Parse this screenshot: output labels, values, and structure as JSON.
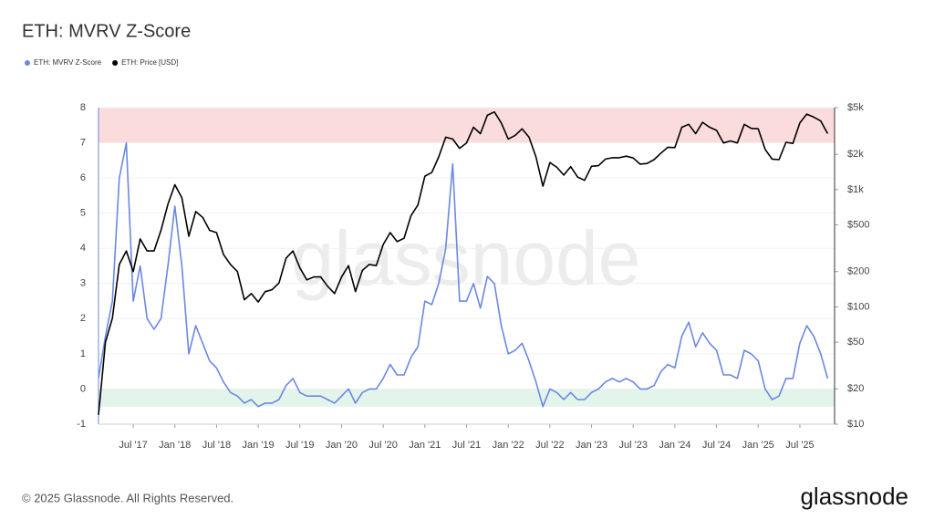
{
  "chart_data": {
    "type": "line",
    "title": "ETH: MVRV Z-Score",
    "copyright": "© 2025 Glassnode. All Rights Reserved.",
    "logo": "glassnode",
    "watermark": "glassnode",
    "legend": "top-left",
    "grid": true,
    "x": [
      "2017-02",
      "2017-03",
      "2017-04",
      "2017-05",
      "2017-06",
      "2017-07",
      "2017-08",
      "2017-09",
      "2017-10",
      "2017-11",
      "2017-12",
      "2018-01",
      "2018-02",
      "2018-03",
      "2018-04",
      "2018-05",
      "2018-06",
      "2018-07",
      "2018-08",
      "2018-09",
      "2018-10",
      "2018-11",
      "2018-12",
      "2019-01",
      "2019-02",
      "2019-03",
      "2019-04",
      "2019-05",
      "2019-06",
      "2019-07",
      "2019-08",
      "2019-09",
      "2019-10",
      "2019-11",
      "2019-12",
      "2020-01",
      "2020-02",
      "2020-03",
      "2020-04",
      "2020-05",
      "2020-06",
      "2020-07",
      "2020-08",
      "2020-09",
      "2020-10",
      "2020-11",
      "2020-12",
      "2021-01",
      "2021-02",
      "2021-03",
      "2021-04",
      "2021-05",
      "2021-06",
      "2021-07",
      "2021-08",
      "2021-09",
      "2021-10",
      "2021-11",
      "2021-12",
      "2022-01",
      "2022-02",
      "2022-03",
      "2022-04",
      "2022-05",
      "2022-06",
      "2022-07",
      "2022-08",
      "2022-09",
      "2022-10",
      "2022-11",
      "2022-12",
      "2023-01",
      "2023-02",
      "2023-03",
      "2023-04",
      "2023-05",
      "2023-06",
      "2023-07",
      "2023-08",
      "2023-09",
      "2023-10",
      "2023-11",
      "2023-12",
      "2024-01",
      "2024-02",
      "2024-03",
      "2024-04",
      "2024-05",
      "2024-06",
      "2024-07",
      "2024-08",
      "2024-09",
      "2024-10",
      "2024-11",
      "2024-12",
      "2025-01",
      "2025-02",
      "2025-03",
      "2025-04",
      "2025-05",
      "2025-06",
      "2025-07",
      "2025-08",
      "2025-09",
      "2025-10",
      "2025-11"
    ],
    "xlim": [
      "2017-02",
      "2025-12"
    ],
    "xticks": [
      {
        "value": "2017-07",
        "label": "Jul '17"
      },
      {
        "value": "2018-01",
        "label": "Jan '18"
      },
      {
        "value": "2018-07",
        "label": "Jul '18"
      },
      {
        "value": "2019-01",
        "label": "Jan '19"
      },
      {
        "value": "2019-07",
        "label": "Jul '19"
      },
      {
        "value": "2020-01",
        "label": "Jan '20"
      },
      {
        "value": "2020-07",
        "label": "Jul '20"
      },
      {
        "value": "2021-01",
        "label": "Jan '21"
      },
      {
        "value": "2021-07",
        "label": "Jul '21"
      },
      {
        "value": "2022-01",
        "label": "Jan '22"
      },
      {
        "value": "2022-07",
        "label": "Jul '22"
      },
      {
        "value": "2023-01",
        "label": "Jan '23"
      },
      {
        "value": "2023-07",
        "label": "Jul '23"
      },
      {
        "value": "2024-01",
        "label": "Jan '24"
      },
      {
        "value": "2024-07",
        "label": "Jul '24"
      },
      {
        "value": "2025-01",
        "label": "Jan '25"
      },
      {
        "value": "2025-07",
        "label": "Jul '25"
      }
    ],
    "ylim": [
      -1,
      8
    ],
    "yticks": [
      -1,
      0,
      1,
      2,
      3,
      4,
      5,
      6,
      7,
      8
    ],
    "y2lim": [
      10,
      5000
    ],
    "y2scale": "log",
    "y2ticks": [
      {
        "value": 10,
        "label": "$10"
      },
      {
        "value": 20,
        "label": "$20"
      },
      {
        "value": 50,
        "label": "$50"
      },
      {
        "value": 100,
        "label": "$100"
      },
      {
        "value": 200,
        "label": "$200"
      },
      {
        "value": 500,
        "label": "$500"
      },
      {
        "value": 1000,
        "label": "$1k"
      },
      {
        "value": 2000,
        "label": "$2k"
      },
      {
        "value": 5000,
        "label": "$5k"
      }
    ],
    "bands": [
      {
        "from": 7,
        "to": 8,
        "color": "#fbdcdc"
      },
      {
        "from": -0.5,
        "to": 0,
        "color": "#e3f4ea"
      }
    ],
    "series": [
      {
        "name": "ETH: MVRV Z-Score",
        "color": "#6b88e2",
        "values": [
          0.3,
          1.5,
          2.5,
          6.0,
          7.0,
          2.5,
          3.5,
          2.0,
          1.7,
          2.0,
          3.5,
          5.2,
          3.5,
          1.0,
          1.8,
          1.3,
          0.8,
          0.6,
          0.2,
          -0.1,
          -0.2,
          -0.4,
          -0.3,
          -0.5,
          -0.4,
          -0.4,
          -0.3,
          0.1,
          0.3,
          -0.1,
          -0.2,
          -0.2,
          -0.2,
          -0.3,
          -0.4,
          -0.2,
          0.0,
          -0.4,
          -0.1,
          0.0,
          0.0,
          0.3,
          0.7,
          0.4,
          0.4,
          0.9,
          1.2,
          2.5,
          2.4,
          3.0,
          4.0,
          6.4,
          2.5,
          2.5,
          3.0,
          2.3,
          3.2,
          3.0,
          1.8,
          1.0,
          1.1,
          1.3,
          0.8,
          0.2,
          -0.5,
          0.0,
          -0.1,
          -0.3,
          -0.1,
          -0.3,
          -0.3,
          -0.1,
          0.0,
          0.2,
          0.3,
          0.2,
          0.3,
          0.2,
          0.0,
          0.0,
          0.1,
          0.5,
          0.7,
          0.6,
          1.5,
          1.9,
          1.2,
          1.6,
          1.3,
          1.1,
          0.4,
          0.4,
          0.3,
          1.1,
          1.0,
          0.8,
          0.0,
          -0.3,
          -0.2,
          0.3,
          0.3,
          1.3,
          1.8,
          1.5,
          1.0,
          0.3
        ]
      },
      {
        "name": "ETH: Price [USD]",
        "color": "#000000",
        "axis": "y2",
        "values": [
          12,
          50,
          80,
          230,
          300,
          200,
          380,
          300,
          300,
          450,
          750,
          1100,
          850,
          400,
          650,
          580,
          450,
          430,
          280,
          230,
          200,
          115,
          130,
          110,
          135,
          140,
          160,
          260,
          300,
          215,
          170,
          180,
          180,
          150,
          130,
          180,
          225,
          135,
          205,
          230,
          225,
          340,
          430,
          360,
          385,
          600,
          740,
          1300,
          1400,
          1900,
          2800,
          2700,
          2250,
          2500,
          3400,
          3000,
          4300,
          4600,
          3700,
          2700,
          2900,
          3300,
          2800,
          1900,
          1070,
          1700,
          1550,
          1330,
          1570,
          1280,
          1200,
          1580,
          1600,
          1820,
          1870,
          1870,
          1930,
          1860,
          1650,
          1670,
          1800,
          2050,
          2300,
          2280,
          3400,
          3600,
          3000,
          3750,
          3400,
          3200,
          2500,
          2600,
          2500,
          3600,
          3330,
          3300,
          2200,
          1820,
          1800,
          2530,
          2480,
          3700,
          4400,
          4150,
          3850,
          3000
        ]
      }
    ]
  }
}
